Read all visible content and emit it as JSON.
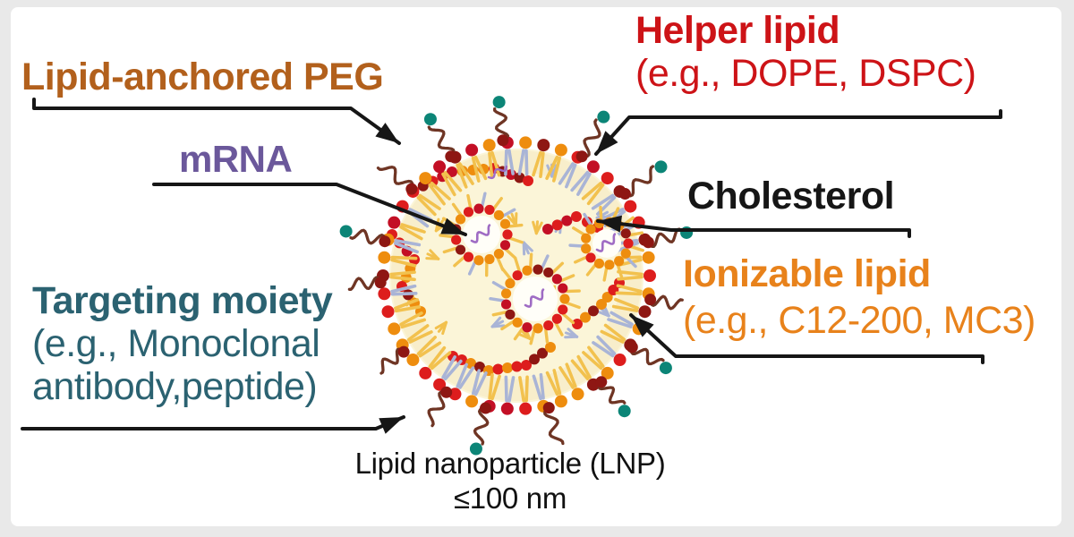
{
  "window": {
    "background": "#e9e9e9",
    "panel_background": "#ffffff"
  },
  "figure": {
    "labels": {
      "lipid_anchored_peg": {
        "text": "Lipid-anchored PEG",
        "color": "#b2601c"
      },
      "mrna": {
        "text": "mRNA",
        "color": "#6b589b"
      },
      "targeting_moiety": {
        "text": "Targeting moiety",
        "example_line1": "(e.g., Monoclonal",
        "example_line2": "antibody,peptide)",
        "color": "#2b6271"
      },
      "helper_lipid": {
        "text": "Helper lipid",
        "example": "(e.g., DOPE, DSPC)",
        "color": "#cd1317"
      },
      "cholesterol": {
        "text": "Cholesterol",
        "color": "#161616"
      },
      "ionizable_lipid": {
        "text": "Ionizable lipid",
        "example": "(e.g., C12-200, MC3)",
        "color": "#e8821b"
      }
    },
    "caption": {
      "line1": "Lipid nanoparticle (LNP)",
      "line2": "≤100 nm",
      "color": "#111111"
    },
    "leader": {
      "color": "#161616"
    },
    "particle": {
      "core": "#fbf5d8",
      "fringe": "#f8eecb",
      "head_orange": "#ee8d0e",
      "head_red": "#dd1d1d",
      "head_maroon": "#8e1713",
      "head_crimson": "#c30f25",
      "tail_yellow": "#f2c14e",
      "tail_blue": "#a9b4d6",
      "peg_chain": "#6f3524",
      "targeting_tip": "#0c8577",
      "mrna_strand": "#9f6cc4",
      "micelle_center": "#fffef8"
    }
  }
}
